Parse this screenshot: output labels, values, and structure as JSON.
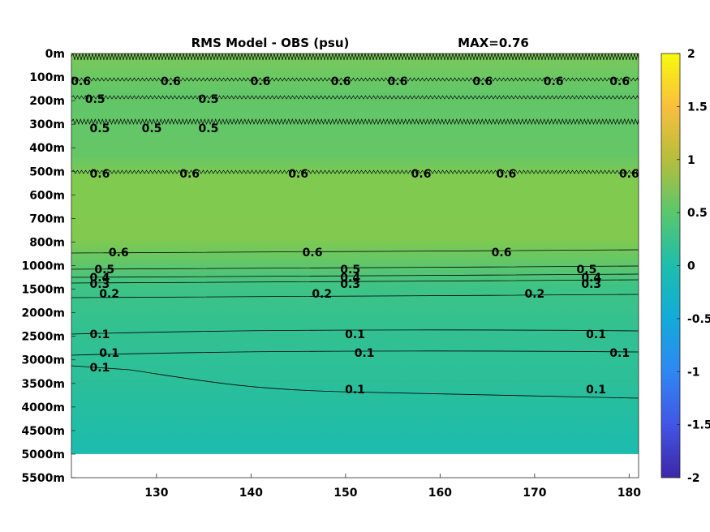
{
  "chart_data": {
    "type": "heatmap",
    "title": "RMS Model - OBS (psu)",
    "max_label": "MAX=0.76",
    "xlabel": "",
    "ylabel": "",
    "x_ticks": [
      "130",
      "140",
      "150",
      "160",
      "170",
      "180"
    ],
    "x_tick_values": [
      130,
      140,
      150,
      160,
      170,
      180
    ],
    "xlim": [
      121,
      181
    ],
    "y_ticks": [
      "0m",
      "100m",
      "200m",
      "300m",
      "400m",
      "500m",
      "600m",
      "700m",
      "800m",
      "1000m",
      "1500m",
      "2000m",
      "2500m",
      "3000m",
      "3500m",
      "4000m",
      "4500m",
      "5000m",
      "5500m"
    ],
    "colorbar": {
      "ticks": [
        "2",
        "1.5",
        "1",
        "0.5",
        "0",
        "-0.5",
        "-1",
        "-1.5",
        "-2"
      ],
      "range": [
        -2,
        2
      ],
      "colormap": "parula"
    },
    "depth_profile": [
      {
        "depth": "0m",
        "value": 0.6
      },
      {
        "depth": "100m",
        "value": 0.6
      },
      {
        "depth": "200m",
        "value": 0.5
      },
      {
        "depth": "300m",
        "value": 0.5
      },
      {
        "depth": "400m",
        "value": 0.55
      },
      {
        "depth": "500m",
        "value": 0.6
      },
      {
        "depth": "600m",
        "value": 0.72
      },
      {
        "depth": "700m",
        "value": 0.72
      },
      {
        "depth": "800m",
        "value": 0.65
      },
      {
        "depth": "1000m",
        "value": 0.5
      },
      {
        "depth": "1500m",
        "value": 0.25
      },
      {
        "depth": "2000m",
        "value": 0.15
      },
      {
        "depth": "2500m",
        "value": 0.1
      },
      {
        "depth": "3000m",
        "value": 0.1
      },
      {
        "depth": "3500m",
        "value": 0.08
      },
      {
        "depth": "4000m",
        "value": 0.06
      },
      {
        "depth": "4500m",
        "value": 0.04
      },
      {
        "depth": "5000m",
        "value": 0.03
      }
    ],
    "contour_labels": [
      {
        "text": "0.6",
        "x": 122,
        "depth": "100m"
      },
      {
        "text": "0.6",
        "x": 131.5,
        "depth": "100m"
      },
      {
        "text": "0.6",
        "x": 141,
        "depth": "100m"
      },
      {
        "text": "0.6",
        "x": 149.5,
        "depth": "100m"
      },
      {
        "text": "0.6",
        "x": 155.5,
        "depth": "100m"
      },
      {
        "text": "0.6",
        "x": 164.5,
        "depth": "100m"
      },
      {
        "text": "0.6",
        "x": 172,
        "depth": "100m"
      },
      {
        "text": "0.6",
        "x": 179,
        "depth": "100m"
      },
      {
        "text": "0.5",
        "x": 123.5,
        "depth": "200m"
      },
      {
        "text": "0.5",
        "x": 135.5,
        "depth": "200m"
      },
      {
        "text": "0.5",
        "x": 124,
        "depth": "300m"
      },
      {
        "text": "0.5",
        "x": 129.5,
        "depth": "300m"
      },
      {
        "text": "0.5",
        "x": 135.5,
        "depth": "300m"
      },
      {
        "text": "0.6",
        "x": 124,
        "depth": "500m"
      },
      {
        "text": "0.6",
        "x": 133.5,
        "depth": "500m"
      },
      {
        "text": "0.6",
        "x": 145,
        "depth": "500m"
      },
      {
        "text": "0.6",
        "x": 158,
        "depth": "500m"
      },
      {
        "text": "0.6",
        "x": 167,
        "depth": "500m"
      },
      {
        "text": "0.6",
        "x": 180,
        "depth": "500m"
      },
      {
        "text": "0.6",
        "x": 126,
        "depth": "800m"
      },
      {
        "text": "0.6",
        "x": 146.5,
        "depth": "800m"
      },
      {
        "text": "0.6",
        "x": 166.5,
        "depth": "800m"
      },
      {
        "text": "0.5",
        "x": 124.5,
        "depth": "1000m"
      },
      {
        "text": "0.5",
        "x": 150.5,
        "depth": "1000m"
      },
      {
        "text": "0.5",
        "x": 175.5,
        "depth": "1000m"
      },
      {
        "text": "0.4",
        "x": 124,
        "depth": "1000m"
      },
      {
        "text": "0.4",
        "x": 150.5,
        "depth": "1000m"
      },
      {
        "text": "0.4",
        "x": 176,
        "depth": "1000m"
      },
      {
        "text": "0.3",
        "x": 124,
        "depth": "1500m"
      },
      {
        "text": "0.3",
        "x": 150.5,
        "depth": "1500m"
      },
      {
        "text": "0.3",
        "x": 176,
        "depth": "1500m"
      },
      {
        "text": "0.2",
        "x": 125,
        "depth": "1500m"
      },
      {
        "text": "0.2",
        "x": 147.5,
        "depth": "1500m"
      },
      {
        "text": "0.2",
        "x": 170,
        "depth": "1500m"
      },
      {
        "text": "0.1",
        "x": 124,
        "depth": "2500m"
      },
      {
        "text": "0.1",
        "x": 151,
        "depth": "2500m"
      },
      {
        "text": "0.1",
        "x": 176.5,
        "depth": "2500m"
      },
      {
        "text": "0.1",
        "x": 125,
        "depth": "3000m"
      },
      {
        "text": "0.1",
        "x": 152,
        "depth": "3000m"
      },
      {
        "text": "0.1",
        "x": 179,
        "depth": "3000m"
      },
      {
        "text": "0.1",
        "x": 124,
        "depth": "3000m"
      },
      {
        "text": "0.1",
        "x": 151,
        "depth": "3500m"
      },
      {
        "text": "0.1",
        "x": 176.5,
        "depth": "3500m"
      }
    ],
    "grid": false,
    "legend": "colorbar-right"
  }
}
